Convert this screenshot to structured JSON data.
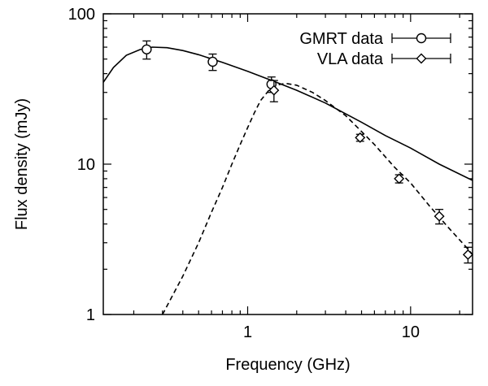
{
  "chart_data": {
    "type": "scatter",
    "xlabel": "Frequency (GHz)",
    "ylabel": "Flux density (mJy)",
    "x_scale": "log",
    "y_scale": "log",
    "xlim": [
      0.13,
      24
    ],
    "ylim": [
      1,
      100
    ],
    "x_ticks": [
      {
        "value": 1,
        "label": "1"
      },
      {
        "value": 10,
        "label": "10"
      }
    ],
    "y_ticks": [
      {
        "value": 1,
        "label": "1"
      },
      {
        "value": 10,
        "label": "10"
      },
      {
        "value": 100,
        "label": "100"
      }
    ],
    "legend_position": "top-right",
    "series": [
      {
        "name": "GMRT data",
        "marker": "circle",
        "points": [
          {
            "x": 0.24,
            "y": 58,
            "err": 8
          },
          {
            "x": 0.61,
            "y": 48,
            "err": 6
          },
          {
            "x": 1.4,
            "y": 34,
            "err": 4
          }
        ]
      },
      {
        "name": "VLA data",
        "marker": "diamond",
        "points": [
          {
            "x": 1.45,
            "y": 31,
            "err": 5
          },
          {
            "x": 4.9,
            "y": 15,
            "err": 0.8
          },
          {
            "x": 8.5,
            "y": 8,
            "err": 0.5
          },
          {
            "x": 15,
            "y": 4.5,
            "err": 0.5
          },
          {
            "x": 22.5,
            "y": 2.5,
            "err": 0.3
          }
        ]
      }
    ],
    "curves": [
      {
        "style": "solid",
        "points": [
          [
            0.13,
            35
          ],
          [
            0.15,
            44
          ],
          [
            0.18,
            53
          ],
          [
            0.22,
            58
          ],
          [
            0.26,
            60
          ],
          [
            0.32,
            59.5
          ],
          [
            0.4,
            57
          ],
          [
            0.5,
            53.5
          ],
          [
            0.7,
            47.5
          ],
          [
            1.0,
            41.5
          ],
          [
            1.5,
            35
          ],
          [
            2,
            31
          ],
          [
            3,
            25.5
          ],
          [
            5,
            19
          ],
          [
            7,
            15.5
          ],
          [
            10,
            12.8
          ],
          [
            15,
            10
          ],
          [
            24,
            7.8
          ]
        ]
      },
      {
        "style": "dashed",
        "points": [
          [
            0.3,
            1
          ],
          [
            0.4,
            1.8
          ],
          [
            0.5,
            3
          ],
          [
            0.6,
            4.8
          ],
          [
            0.7,
            7
          ],
          [
            0.8,
            10
          ],
          [
            0.9,
            13.5
          ],
          [
            1.0,
            17.5
          ],
          [
            1.1,
            22
          ],
          [
            1.2,
            26.5
          ],
          [
            1.35,
            31
          ],
          [
            1.5,
            33.5
          ],
          [
            1.7,
            34.5
          ],
          [
            2.0,
            33.5
          ],
          [
            2.5,
            30
          ],
          [
            3,
            26.5
          ],
          [
            4,
            21
          ],
          [
            5,
            16.5
          ],
          [
            6,
            13.5
          ],
          [
            8,
            9.5
          ],
          [
            10,
            7.5
          ],
          [
            13,
            5.3
          ],
          [
            17,
            3.8
          ],
          [
            22,
            2.8
          ],
          [
            24,
            2.5
          ]
        ]
      }
    ]
  }
}
